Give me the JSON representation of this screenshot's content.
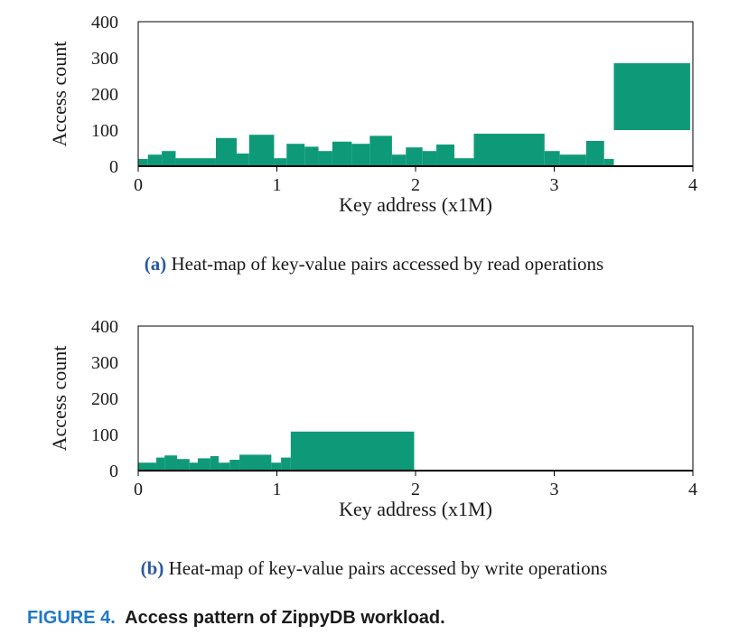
{
  "colors": {
    "bar": "#0e9a78",
    "axis": "#000000",
    "caption_letter": "#2a5a9c",
    "figure_label": "#1f78c8"
  },
  "chart_data": [
    {
      "type": "area",
      "caption_letter": "(a)",
      "caption_text": " Heat-map of key-value pairs accessed by read operations",
      "xlabel": "Key address (x1M)",
      "ylabel": "Access count",
      "xlim": [
        0,
        4
      ],
      "ylim": [
        0,
        400
      ],
      "xticks": [
        "0",
        "1",
        "2",
        "3",
        "4"
      ],
      "yticks": [
        "0",
        "100",
        "200",
        "300",
        "400"
      ],
      "grid": false,
      "segments": [
        {
          "x0": 0.0,
          "x1": 0.07,
          "low": 0,
          "high": 20
        },
        {
          "x0": 0.07,
          "x1": 0.17,
          "low": 0,
          "high": 32
        },
        {
          "x0": 0.17,
          "x1": 0.27,
          "low": 0,
          "high": 42
        },
        {
          "x0": 0.27,
          "x1": 0.56,
          "low": 0,
          "high": 22
        },
        {
          "x0": 0.56,
          "x1": 0.71,
          "low": 0,
          "high": 78
        },
        {
          "x0": 0.71,
          "x1": 0.8,
          "low": 0,
          "high": 35
        },
        {
          "x0": 0.8,
          "x1": 0.98,
          "low": 0,
          "high": 87
        },
        {
          "x0": 0.98,
          "x1": 1.07,
          "low": 0,
          "high": 22
        },
        {
          "x0": 1.07,
          "x1": 1.2,
          "low": 0,
          "high": 62
        },
        {
          "x0": 1.2,
          "x1": 1.3,
          "low": 0,
          "high": 54
        },
        {
          "x0": 1.3,
          "x1": 1.4,
          "low": 0,
          "high": 42
        },
        {
          "x0": 1.4,
          "x1": 1.54,
          "low": 0,
          "high": 68
        },
        {
          "x0": 1.54,
          "x1": 1.67,
          "low": 0,
          "high": 62
        },
        {
          "x0": 1.67,
          "x1": 1.83,
          "low": 0,
          "high": 84
        },
        {
          "x0": 1.83,
          "x1": 1.93,
          "low": 0,
          "high": 32
        },
        {
          "x0": 1.93,
          "x1": 2.05,
          "low": 0,
          "high": 52
        },
        {
          "x0": 2.05,
          "x1": 2.15,
          "low": 0,
          "high": 42
        },
        {
          "x0": 2.15,
          "x1": 2.28,
          "low": 0,
          "high": 60
        },
        {
          "x0": 2.28,
          "x1": 2.42,
          "low": 0,
          "high": 22
        },
        {
          "x0": 2.42,
          "x1": 2.93,
          "low": 0,
          "high": 90
        },
        {
          "x0": 2.93,
          "x1": 3.04,
          "low": 0,
          "high": 42
        },
        {
          "x0": 3.04,
          "x1": 3.23,
          "low": 0,
          "high": 32
        },
        {
          "x0": 3.23,
          "x1": 3.36,
          "low": 0,
          "high": 70
        },
        {
          "x0": 3.36,
          "x1": 3.43,
          "low": 0,
          "high": 20
        },
        {
          "x0": 3.43,
          "x1": 3.98,
          "low": 100,
          "high": 285
        }
      ]
    },
    {
      "type": "area",
      "caption_letter": "(b)",
      "caption_text": " Heat-map of key-value pairs accessed by write operations",
      "xlabel": "Key address (x1M)",
      "ylabel": "Access count",
      "xlim": [
        0,
        4
      ],
      "ylim": [
        0,
        400
      ],
      "xticks": [
        "0",
        "1",
        "2",
        "3",
        "4"
      ],
      "yticks": [
        "0",
        "100",
        "200",
        "300",
        "400"
      ],
      "grid": false,
      "segments": [
        {
          "x0": 0.0,
          "x1": 0.13,
          "low": 0,
          "high": 22
        },
        {
          "x0": 0.13,
          "x1": 0.19,
          "low": 0,
          "high": 36
        },
        {
          "x0": 0.19,
          "x1": 0.28,
          "low": 0,
          "high": 42
        },
        {
          "x0": 0.28,
          "x1": 0.37,
          "low": 0,
          "high": 32
        },
        {
          "x0": 0.37,
          "x1": 0.43,
          "low": 0,
          "high": 22
        },
        {
          "x0": 0.43,
          "x1": 0.52,
          "low": 0,
          "high": 34
        },
        {
          "x0": 0.52,
          "x1": 0.58,
          "low": 0,
          "high": 40
        },
        {
          "x0": 0.58,
          "x1": 0.66,
          "low": 0,
          "high": 22
        },
        {
          "x0": 0.66,
          "x1": 0.73,
          "low": 0,
          "high": 30
        },
        {
          "x0": 0.73,
          "x1": 0.96,
          "low": 0,
          "high": 44
        },
        {
          "x0": 0.96,
          "x1": 1.03,
          "low": 0,
          "high": 22
        },
        {
          "x0": 1.03,
          "x1": 1.1,
          "low": 0,
          "high": 36
        },
        {
          "x0": 1.1,
          "x1": 1.99,
          "low": 0,
          "high": 108
        }
      ]
    }
  ],
  "figure": {
    "label": "FIGURE 4.",
    "title": "  Access pattern of ZippyDB workload."
  }
}
